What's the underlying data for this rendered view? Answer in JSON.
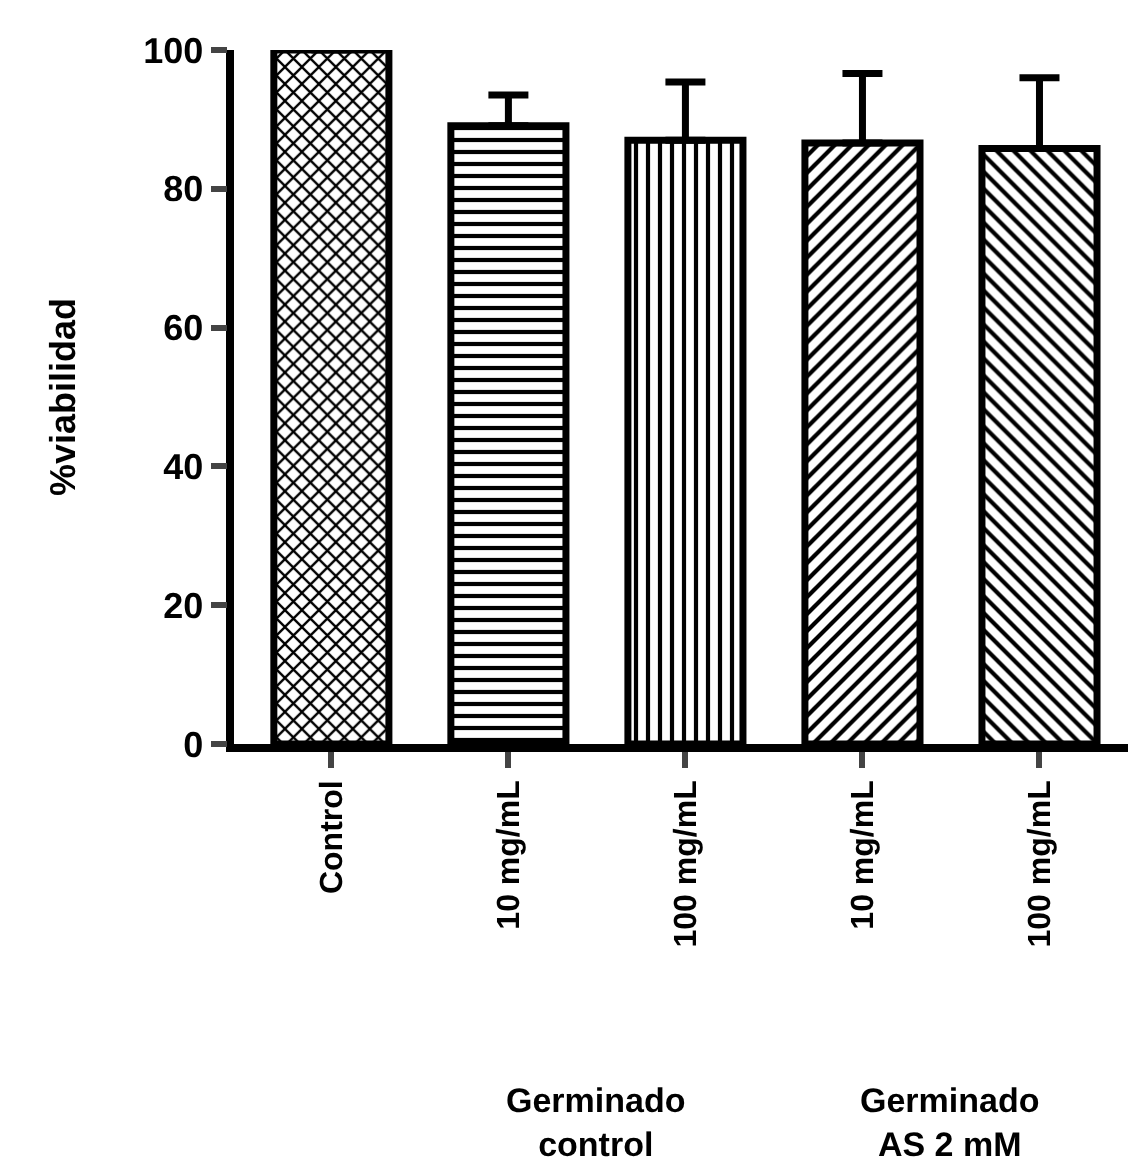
{
  "chart_data": {
    "type": "bar",
    "ylabel": "%viabilidad",
    "categories": [
      "Control",
      "10 mg/mL",
      "100 mg/mL",
      "10 mg/mL",
      "100 mg/mL"
    ],
    "values": [
      100,
      89.1,
      87,
      86.6,
      85.8
    ],
    "errors": [
      null,
      4.4,
      8.4,
      10,
      10.2
    ],
    "color": "#000000",
    "ylim": [
      0,
      100
    ],
    "yticks": [
      0,
      20,
      40,
      60,
      80,
      100
    ],
    "grid": false,
    "legend": false,
    "annotations": [
      "Germinado\ncontrol",
      "Germinado\nAS 2 mM"
    ]
  }
}
